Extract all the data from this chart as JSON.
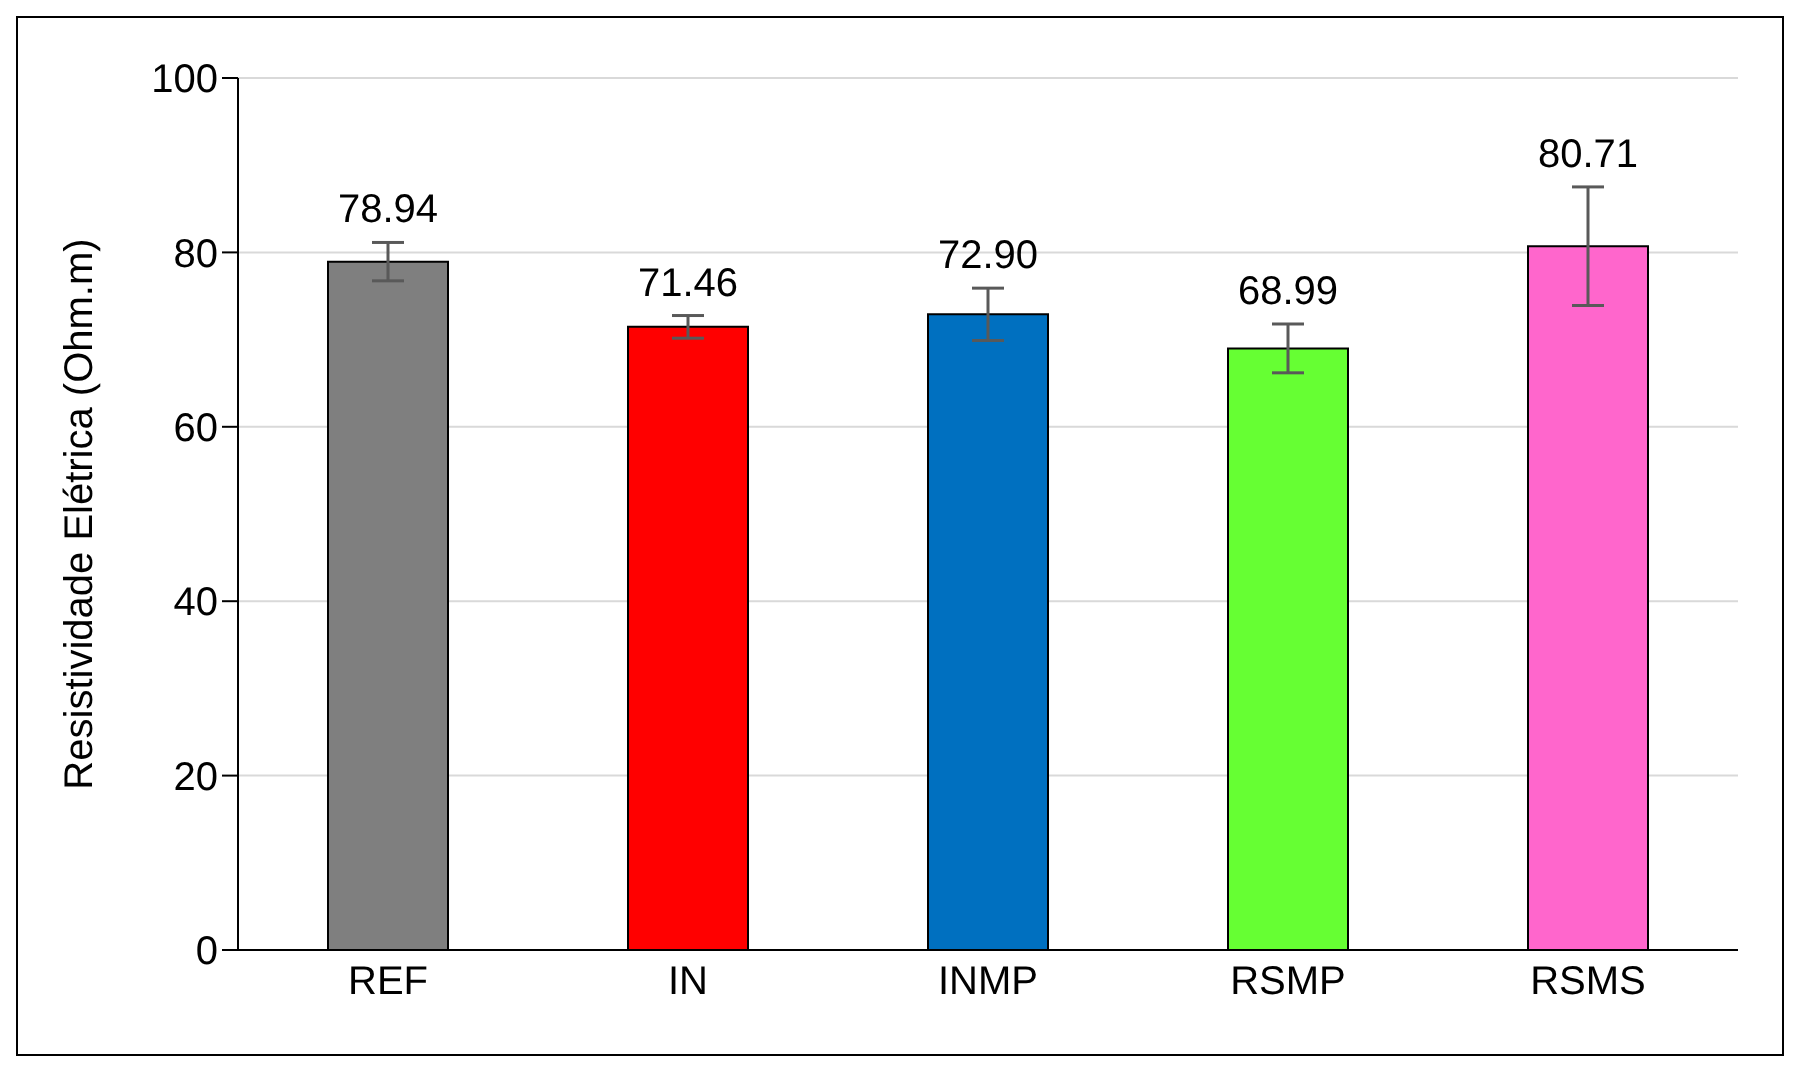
{
  "chart_data": {
    "type": "bar",
    "ylabel": "Resistividade Elétrica (Ohm.m)",
    "categories": [
      "REF",
      "IN",
      "INMP",
      "RSMP",
      "RSMS"
    ],
    "values": [
      78.94,
      71.46,
      72.9,
      68.99,
      80.71
    ],
    "colors": [
      "#7f7f7f",
      "#ff0000",
      "#0070c0",
      "#66ff33",
      "#ff66cc"
    ],
    "errors": [
      2.2,
      1.3,
      3.0,
      2.8,
      6.8
    ],
    "value_labels": [
      "78.94",
      "71.46",
      "72.90",
      "68.99",
      "80.71"
    ],
    "ylim": [
      0,
      100
    ],
    "yticks": [
      0,
      20,
      40,
      60,
      80,
      100
    ],
    "grid": "y",
    "legend": false
  }
}
